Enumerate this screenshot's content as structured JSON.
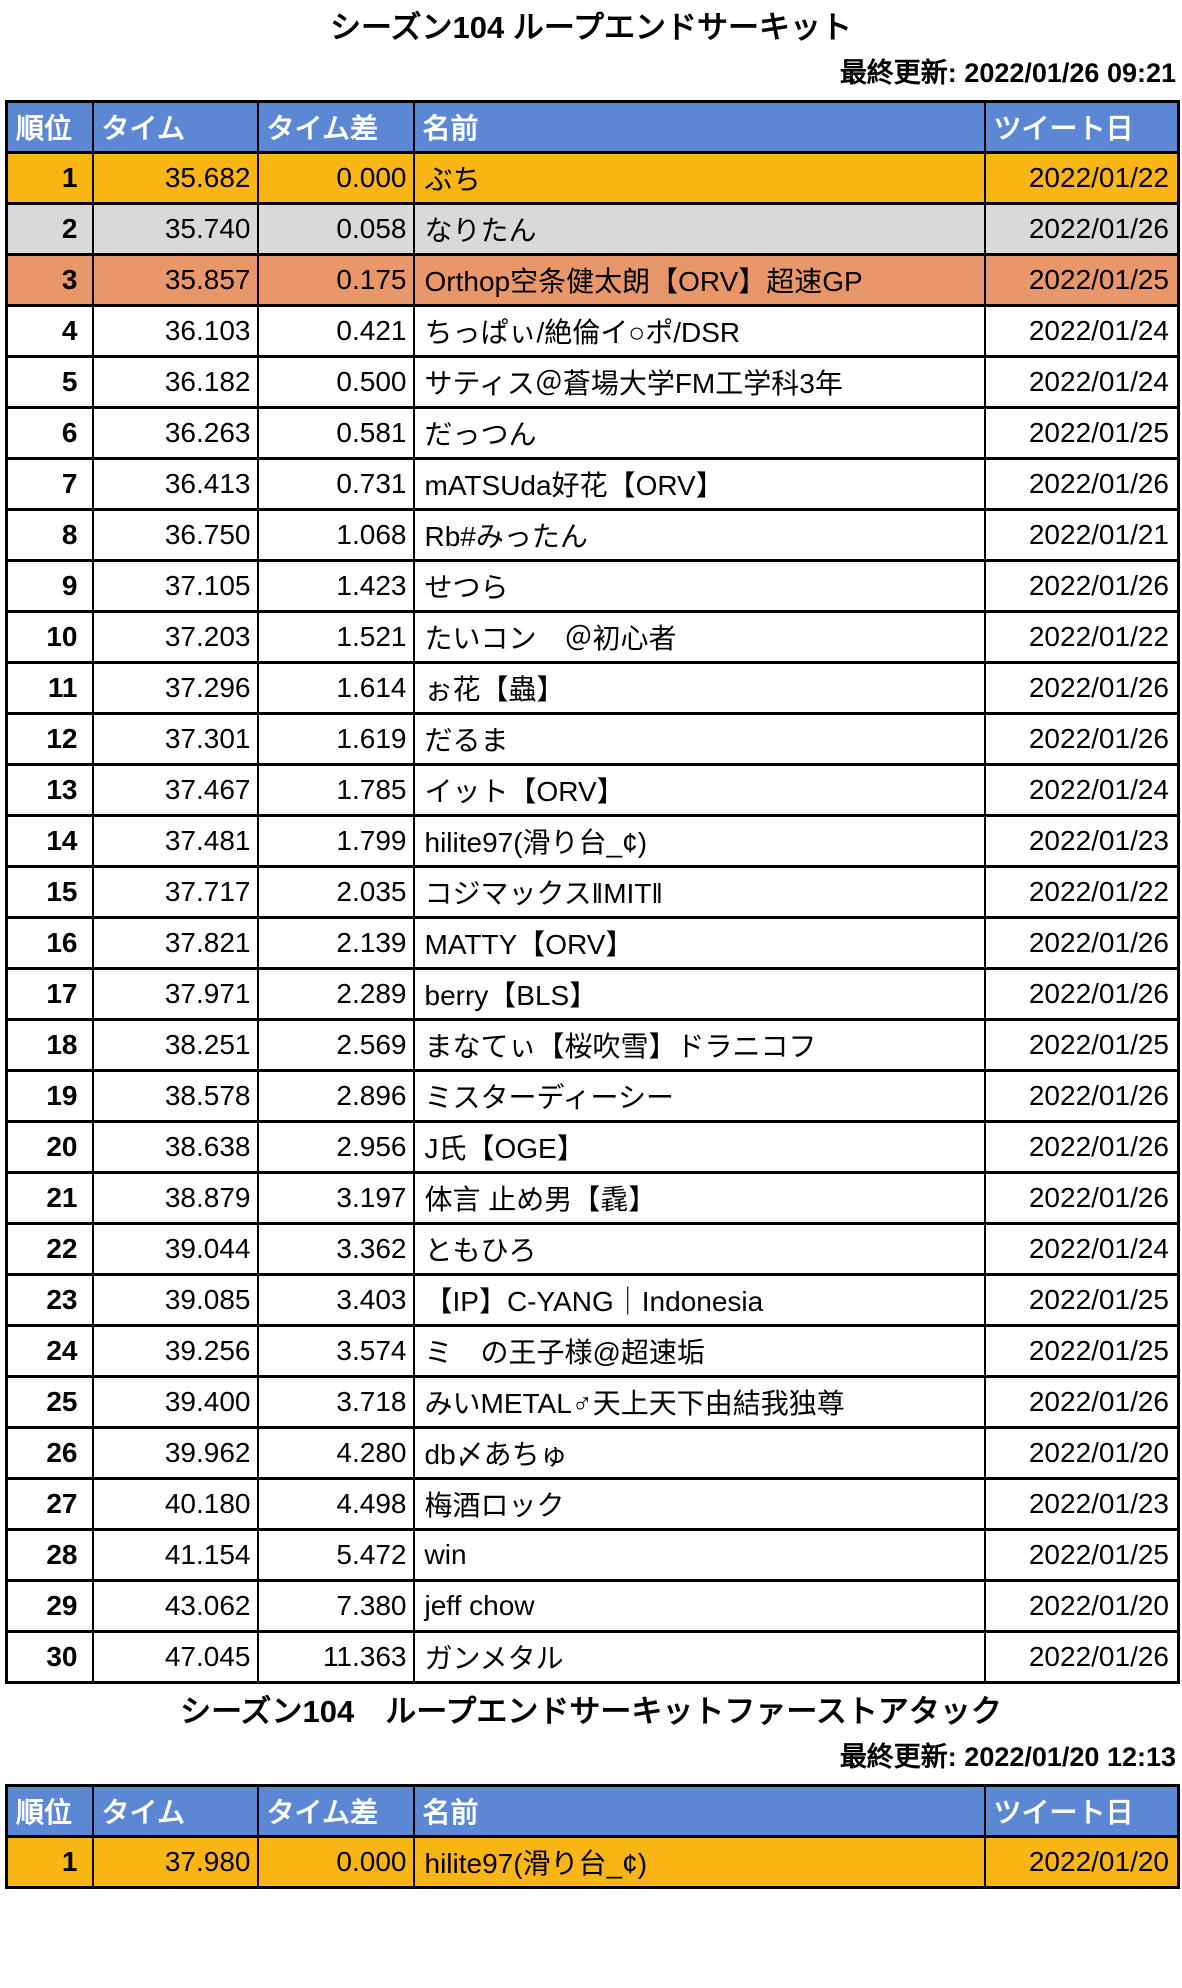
{
  "colors": {
    "page_bg": "#ffffff",
    "text": "#000000",
    "border": "#000000",
    "header_bg": "#5b87d5",
    "header_text": "#ffffff",
    "gold": "#f9b513",
    "silver": "#d9d9d9",
    "bronze": "#e8976a",
    "row_bg": "#ffffff"
  },
  "tables": [
    {
      "title": "シーズン104 ループエンドサーキット",
      "last_updated_label": "最終更新: 2022/01/26 09:21",
      "columns": [
        "順位",
        "タイム",
        "タイム差",
        "名前",
        "ツイート日"
      ],
      "rows": [
        {
          "rank": "1",
          "time": "35.682",
          "diff": "0.000",
          "name": "ぶち",
          "date": "2022/01/22",
          "highlight": "gold"
        },
        {
          "rank": "2",
          "time": "35.740",
          "diff": "0.058",
          "name": "なりたん",
          "date": "2022/01/26",
          "highlight": "silver"
        },
        {
          "rank": "3",
          "time": "35.857",
          "diff": "0.175",
          "name": "Orthop空条健太朗【ORV】超速GP",
          "date": "2022/01/25",
          "highlight": "bronze"
        },
        {
          "rank": "4",
          "time": "36.103",
          "diff": "0.421",
          "name": "ちっぱぃ/絶倫イ○ポ/DSR",
          "date": "2022/01/24",
          "highlight": ""
        },
        {
          "rank": "5",
          "time": "36.182",
          "diff": "0.500",
          "name": "サティス＠蒼場大学FM工学科3年",
          "date": "2022/01/24",
          "highlight": ""
        },
        {
          "rank": "6",
          "time": "36.263",
          "diff": "0.581",
          "name": "だっつん",
          "date": "2022/01/25",
          "highlight": ""
        },
        {
          "rank": "7",
          "time": "36.413",
          "diff": "0.731",
          "name": "mATSUda好花【ORV】",
          "date": "2022/01/26",
          "highlight": ""
        },
        {
          "rank": "8",
          "time": "36.750",
          "diff": "1.068",
          "name": "Rb#みったん",
          "date": "2022/01/21",
          "highlight": ""
        },
        {
          "rank": "9",
          "time": "37.105",
          "diff": "1.423",
          "name": "せつら",
          "date": "2022/01/26",
          "highlight": ""
        },
        {
          "rank": "10",
          "time": "37.203",
          "diff": "1.521",
          "name": "たいコン　＠初心者",
          "date": "2022/01/22",
          "highlight": ""
        },
        {
          "rank": "11",
          "time": "37.296",
          "diff": "1.614",
          "name": "ぉ花【蟲】",
          "date": "2022/01/26",
          "highlight": ""
        },
        {
          "rank": "12",
          "time": "37.301",
          "diff": "1.619",
          "name": "だるま",
          "date": "2022/01/26",
          "highlight": ""
        },
        {
          "rank": "13",
          "time": "37.467",
          "diff": "1.785",
          "name": "イット【ORV】",
          "date": "2022/01/24",
          "highlight": ""
        },
        {
          "rank": "14",
          "time": "37.481",
          "diff": "1.799",
          "name": "hilite97(滑り台_¢)",
          "date": "2022/01/23",
          "highlight": ""
        },
        {
          "rank": "15",
          "time": "37.717",
          "diff": "2.035",
          "name": "コジマックス‖MIT‖",
          "date": "2022/01/22",
          "highlight": ""
        },
        {
          "rank": "16",
          "time": "37.821",
          "diff": "2.139",
          "name": "MATTY【ORV】",
          "date": "2022/01/26",
          "highlight": ""
        },
        {
          "rank": "17",
          "time": "37.971",
          "diff": "2.289",
          "name": "berry【BLS】",
          "date": "2022/01/26",
          "highlight": ""
        },
        {
          "rank": "18",
          "time": "38.251",
          "diff": "2.569",
          "name": "まなてぃ【桜吹雪】ドラニコフ",
          "date": "2022/01/25",
          "highlight": ""
        },
        {
          "rank": "19",
          "time": "38.578",
          "diff": "2.896",
          "name": "ミスターディーシー",
          "date": "2022/01/26",
          "highlight": ""
        },
        {
          "rank": "20",
          "time": "38.638",
          "diff": "2.956",
          "name": "J氏【OGE】",
          "date": "2022/01/26",
          "highlight": ""
        },
        {
          "rank": "21",
          "time": "38.879",
          "diff": "3.197",
          "name": "体言 止め男【毳】",
          "date": "2022/01/26",
          "highlight": ""
        },
        {
          "rank": "22",
          "time": "39.044",
          "diff": "3.362",
          "name": "ともひろ",
          "date": "2022/01/24",
          "highlight": ""
        },
        {
          "rank": "23",
          "time": "39.085",
          "diff": "3.403",
          "name": "【IP】C-YANG｜Indonesia",
          "date": "2022/01/25",
          "highlight": ""
        },
        {
          "rank": "24",
          "time": "39.256",
          "diff": "3.574",
          "name": "ミ　の王子様@超速垢",
          "date": "2022/01/25",
          "highlight": ""
        },
        {
          "rank": "25",
          "time": "39.400",
          "diff": "3.718",
          "name": "みいMETAL♂天上天下由結我独尊",
          "date": "2022/01/26",
          "highlight": ""
        },
        {
          "rank": "26",
          "time": "39.962",
          "diff": "4.280",
          "name": "db〆あちゅ",
          "date": "2022/01/20",
          "highlight": ""
        },
        {
          "rank": "27",
          "time": "40.180",
          "diff": "4.498",
          "name": "梅酒ロック",
          "date": "2022/01/23",
          "highlight": ""
        },
        {
          "rank": "28",
          "time": "41.154",
          "diff": "5.472",
          "name": "win",
          "date": "2022/01/25",
          "highlight": ""
        },
        {
          "rank": "29",
          "time": "43.062",
          "diff": "7.380",
          "name": "jeff chow",
          "date": "2022/01/20",
          "highlight": ""
        },
        {
          "rank": "30",
          "time": "47.045",
          "diff": "11.363",
          "name": "ガンメタル",
          "date": "2022/01/26",
          "highlight": ""
        }
      ]
    },
    {
      "title": "シーズン104　ループエンドサーキットファーストアタック",
      "last_updated_label": "最終更新: 2022/01/20 12:13",
      "columns": [
        "順位",
        "タイム",
        "タイム差",
        "名前",
        "ツイート日"
      ],
      "rows": [
        {
          "rank": "1",
          "time": "37.980",
          "diff": "0.000",
          "name": "hilite97(滑り台_¢)",
          "date": "2022/01/20",
          "highlight": "gold"
        }
      ]
    }
  ]
}
